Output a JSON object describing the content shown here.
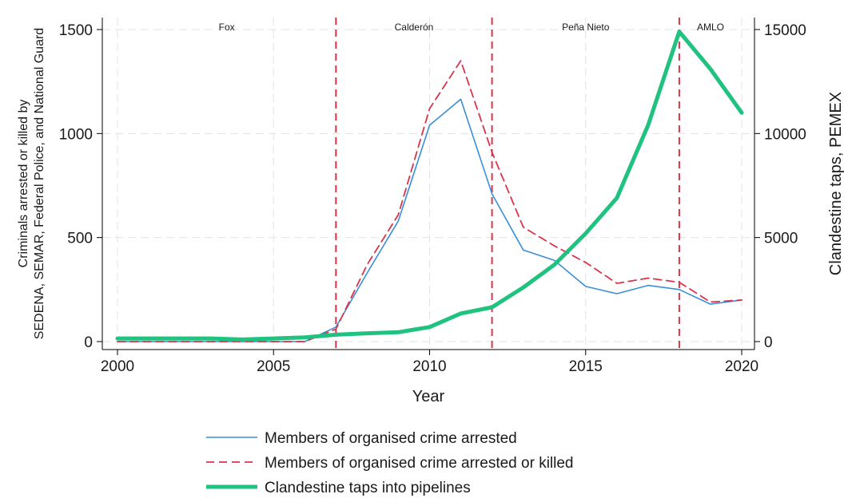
{
  "chart_data": {
    "type": "line",
    "title": "",
    "xlabel": "Year",
    "ylabel_lines": [
      "Criminals arrested or killed by",
      "SEDENA, SEMAR, Federal Police, and National Guard"
    ],
    "y2label": "Clandestine taps, PEMEX",
    "xlim": [
      2000,
      2020
    ],
    "ylim": [
      0,
      1500
    ],
    "y2lim": [
      0,
      15000
    ],
    "x_ticks": [
      2000,
      2005,
      2010,
      2015,
      2020
    ],
    "y_ticks": [
      0,
      500,
      1000,
      1500
    ],
    "y2_ticks": [
      0,
      5000,
      10000,
      15000
    ],
    "grid": true,
    "legend_position": "bottom",
    "periods": [
      {
        "label": "Fox",
        "start": 2000,
        "end": 2007
      },
      {
        "label": "Calderón",
        "start": 2007,
        "end": 2012
      },
      {
        "label": "Peña Nieto",
        "start": 2012,
        "end": 2018
      },
      {
        "label": "AMLO",
        "start": 2018,
        "end": 2020
      }
    ],
    "term_boundaries": [
      2007,
      2012,
      2018
    ],
    "x": [
      2000,
      2001,
      2002,
      2003,
      2004,
      2005,
      2006,
      2007,
      2008,
      2009,
      2010,
      2011,
      2012,
      2013,
      2014,
      2015,
      2016,
      2017,
      2018,
      2019,
      2020
    ],
    "series": [
      {
        "name": "Members of organised crime arrested",
        "axis": "left",
        "style": "solid-thin",
        "color": "#3a8fd9",
        "values": [
          0,
          0,
          0,
          0,
          0,
          0,
          0,
          70,
          330,
          580,
          1040,
          1165,
          710,
          440,
          390,
          265,
          230,
          270,
          250,
          180,
          200
        ]
      },
      {
        "name": "Members of organised crime arrested or killed",
        "axis": "left",
        "style": "dashed",
        "color": "#d9344a",
        "values": [
          0,
          0,
          0,
          0,
          0,
          0,
          0,
          60,
          370,
          610,
          1120,
          1350,
          910,
          550,
          460,
          380,
          280,
          305,
          285,
          190,
          200
        ]
      },
      {
        "name": "Clandestine taps into pipelines",
        "axis": "right",
        "style": "solid-thick",
        "color": "#1fc27e",
        "values": [
          150,
          150,
          150,
          150,
          100,
          150,
          200,
          330,
          400,
          450,
          700,
          1350,
          1650,
          2600,
          3700,
          5200,
          6900,
          10400,
          14900,
          13100,
          11000
        ]
      }
    ]
  }
}
